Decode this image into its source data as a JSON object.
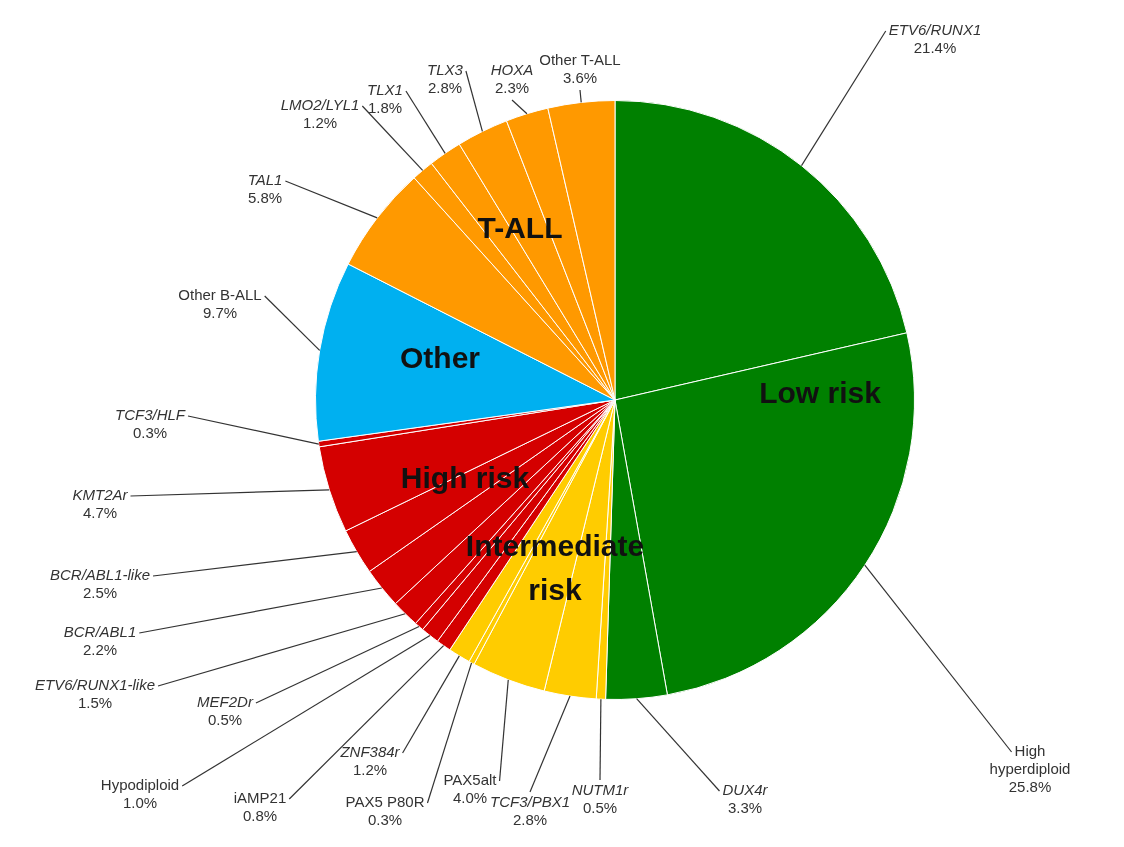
{
  "chart_data": {
    "type": "pie",
    "categories": [
      "ETV6/RUNX1",
      "High hyperdiploid",
      "DUX4r",
      "NUTM1r",
      "TCF3/PBX1",
      "PAX5alt",
      "PAX5 P80R",
      "ZNF384r",
      "iAMP21",
      "Hypodiploid",
      "MEF2Dr",
      "ETV6/RUNX1-like",
      "BCR/ABL1",
      "BCR/ABL1-like",
      "KMT2Ar",
      "TCF3/HLF",
      "Other B-ALL",
      "TAL1",
      "LMO2/LYL1",
      "TLX1",
      "TLX3",
      "HOXA",
      "Other T-ALL"
    ],
    "values": [
      21.4,
      25.8,
      3.3,
      0.5,
      2.8,
      4.0,
      0.3,
      1.2,
      0.8,
      1.0,
      0.5,
      1.5,
      2.2,
      2.5,
      4.7,
      0.3,
      9.7,
      5.8,
      1.2,
      1.8,
      2.8,
      2.3,
      3.6
    ],
    "value_labels": [
      "21.4%",
      "25.8%",
      "3.3%",
      "0.5%",
      "2.8%",
      "4.0%",
      "0.3%",
      "1.2%",
      "0.8%",
      "1.0%",
      "0.5%",
      "1.5%",
      "2.2%",
      "2.5%",
      "4.7%",
      "0.3%",
      "9.7%",
      "5.8%",
      "1.2%",
      "1.8%",
      "2.8%",
      "2.3%",
      "3.6%"
    ],
    "colors": [
      "#008000",
      "#008000",
      "#008000",
      "#ffcc00",
      "#ffcc00",
      "#ffcc00",
      "#ffcc00",
      "#ffcc00",
      "#d40000",
      "#d40000",
      "#d40000",
      "#d40000",
      "#d40000",
      "#d40000",
      "#d40000",
      "#d40000",
      "#00b0f0",
      "#ff9900",
      "#ff9900",
      "#ff9900",
      "#ff9900",
      "#ff9900",
      "#ff9900"
    ],
    "annotations": [
      "Low risk",
      "Intermediate risk",
      "High risk",
      "Other",
      "T-ALL"
    ],
    "legend": false
  }
}
